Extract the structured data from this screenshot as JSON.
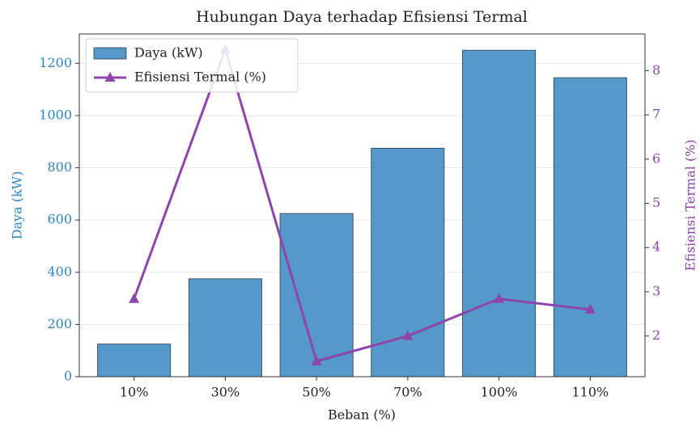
{
  "chart_data": {
    "type": "bar_line",
    "title": "Hubungan Daya terhadap Efisiensi Termal",
    "xlabel": "Beban (%)",
    "ylabel": "Daya (kW)",
    "y2label": "Efisiensi Termal (%)",
    "categories": [
      "10%",
      "30%",
      "50%",
      "70%",
      "100%",
      "110%"
    ],
    "series": [
      {
        "name": "Daya (kW)",
        "type": "bar",
        "color": "#5499c7",
        "values": [
          125,
          375,
          625,
          875,
          1250,
          1145
        ]
      },
      {
        "name": "Efisiensi Termal (%)",
        "type": "line",
        "axis": "y2",
        "color": "#8e44ad",
        "values": [
          2.84,
          8.48,
          1.43,
          2.0,
          2.84,
          2.6
        ]
      }
    ],
    "ylim": [
      0,
      1312.5
    ],
    "yticks": [
      0,
      200,
      400,
      600,
      800,
      1000,
      1200
    ],
    "y2lim": [
      1.08,
      8.83
    ],
    "y2ticks": [
      2,
      3,
      4,
      5,
      6,
      7,
      8
    ],
    "ycolor": "#2e86c1",
    "y2color": "#8e44ad",
    "grid": true,
    "legend": "upper left"
  }
}
